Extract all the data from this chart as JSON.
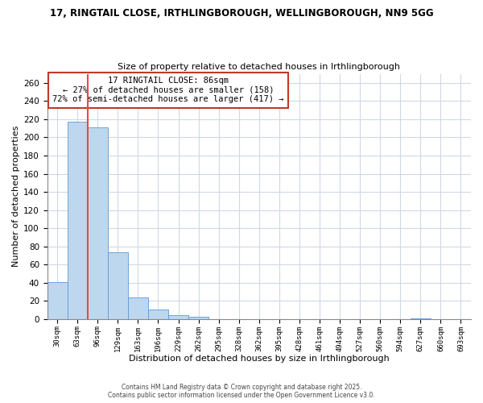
{
  "title1": "17, RINGTAIL CLOSE, IRTHLINGBOROUGH, WELLINGBOROUGH, NN9 5GG",
  "title2": "Size of property relative to detached houses in Irthlingborough",
  "xlabel": "Distribution of detached houses by size in Irthlingborough",
  "ylabel": "Number of detached properties",
  "bar_values": [
    41,
    217,
    211,
    74,
    24,
    11,
    4,
    3,
    0,
    0,
    0,
    0,
    0,
    0,
    0,
    0,
    0,
    0,
    1,
    0,
    0
  ],
  "bar_labels": [
    "30sqm",
    "63sqm",
    "96sqm",
    "129sqm",
    "163sqm",
    "196sqm",
    "229sqm",
    "262sqm",
    "295sqm",
    "328sqm",
    "362sqm",
    "395sqm",
    "428sqm",
    "461sqm",
    "494sqm",
    "527sqm",
    "560sqm",
    "594sqm",
    "627sqm",
    "660sqm",
    "693sqm"
  ],
  "bar_color": "#bdd7ee",
  "bar_edge_color": "#5b9bd5",
  "vline_color": "#e74c3c",
  "annotation_title": "17 RINGTAIL CLOSE: 86sqm",
  "annotation_line1": "← 27% of detached houses are smaller (158)",
  "annotation_line2": "72% of semi-detached houses are larger (417) →",
  "annotation_box_color": "#ffffff",
  "annotation_box_edge": "#c0392b",
  "ylim": [
    0,
    270
  ],
  "yticks": [
    0,
    20,
    40,
    60,
    80,
    100,
    120,
    140,
    160,
    180,
    200,
    220,
    240,
    260
  ],
  "grid_color": "#d0d8e8",
  "bg_color": "#ffffff",
  "footer1": "Contains HM Land Registry data © Crown copyright and database right 2025.",
  "footer2": "Contains public sector information licensed under the Open Government Licence v3.0."
}
